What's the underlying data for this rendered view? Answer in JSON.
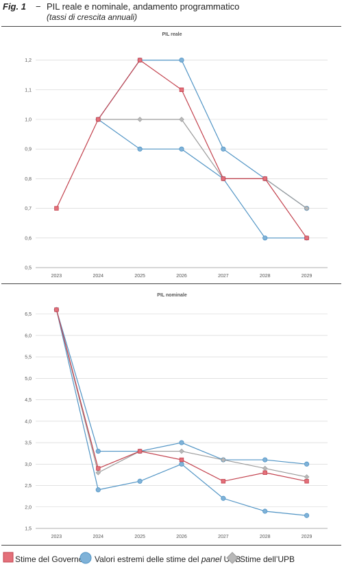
{
  "figure": {
    "number": "Fig. 1",
    "dash": "−",
    "title": "PIL reale e nominale, andamento programmatico",
    "subtitle": "(tassi di crescita annuali)"
  },
  "colors": {
    "governo": "#e4707a",
    "governo_stroke": "#c2404c",
    "panel": "#7fb2d8",
    "panel_stroke": "#4f93c4",
    "upb": "#b8b8b8",
    "upb_stroke": "#9a9a9a",
    "grid": "#cfcfcf"
  },
  "legend": {
    "governo": "Stime del Governo",
    "panel_pre": "Valori estremi delle stime del ",
    "panel_em": "panel",
    "panel_post": " UPB",
    "upb": "Stime dell’UPB"
  },
  "chart_data": [
    {
      "type": "line",
      "title": "PIL reale",
      "categories": [
        "2023",
        "2024",
        "2025",
        "2026",
        "2027",
        "2028",
        "2029"
      ],
      "ylim": [
        0.5,
        1.25
      ],
      "yticks": [
        0.5,
        0.6,
        0.7,
        0.8,
        0.9,
        1.0,
        1.1,
        1.2
      ],
      "ytick_labels": [
        "0,5",
        "0,6",
        "0,7",
        "0,8",
        "0,9",
        "1,0",
        "1,1",
        "1,2"
      ],
      "series": [
        {
          "key": "panel_max",
          "role": "panel",
          "values": [
            null,
            1.0,
            1.2,
            1.2,
            0.9,
            0.8,
            0.7
          ]
        },
        {
          "key": "panel_min",
          "role": "panel",
          "values": [
            null,
            1.0,
            0.9,
            0.9,
            0.8,
            0.6,
            0.6
          ]
        },
        {
          "key": "upb",
          "role": "upb",
          "values": [
            null,
            1.0,
            1.0,
            1.0,
            0.8,
            0.8,
            0.7
          ]
        },
        {
          "key": "governo",
          "role": "governo",
          "values": [
            0.7,
            1.0,
            1.2,
            1.1,
            0.8,
            0.8,
            0.6
          ]
        }
      ]
    },
    {
      "type": "line",
      "title": "PIL nominale",
      "categories": [
        "2023",
        "2024",
        "2025",
        "2026",
        "2027",
        "2028",
        "2029"
      ],
      "ylim": [
        1.5,
        6.75
      ],
      "yticks": [
        1.5,
        2.0,
        2.5,
        3.0,
        3.5,
        4.0,
        4.5,
        5.0,
        5.5,
        6.0,
        6.5
      ],
      "ytick_labels": [
        "1,5",
        "2,0",
        "2,5",
        "3,0",
        "3,5",
        "4,0",
        "4,5",
        "5,0",
        "5,5",
        "6,0",
        "6,5"
      ],
      "series": [
        {
          "key": "panel_max",
          "role": "panel",
          "values": [
            6.6,
            3.3,
            3.3,
            3.5,
            3.1,
            3.1,
            3.0
          ]
        },
        {
          "key": "panel_min",
          "role": "panel",
          "values": [
            6.6,
            2.4,
            2.6,
            3.0,
            2.2,
            1.9,
            1.8
          ]
        },
        {
          "key": "upb",
          "role": "upb",
          "values": [
            6.6,
            2.8,
            3.3,
            3.3,
            3.1,
            2.9,
            2.7
          ]
        },
        {
          "key": "governo",
          "role": "governo",
          "values": [
            6.6,
            2.9,
            3.3,
            3.1,
            2.6,
            2.8,
            2.6
          ]
        }
      ]
    }
  ]
}
